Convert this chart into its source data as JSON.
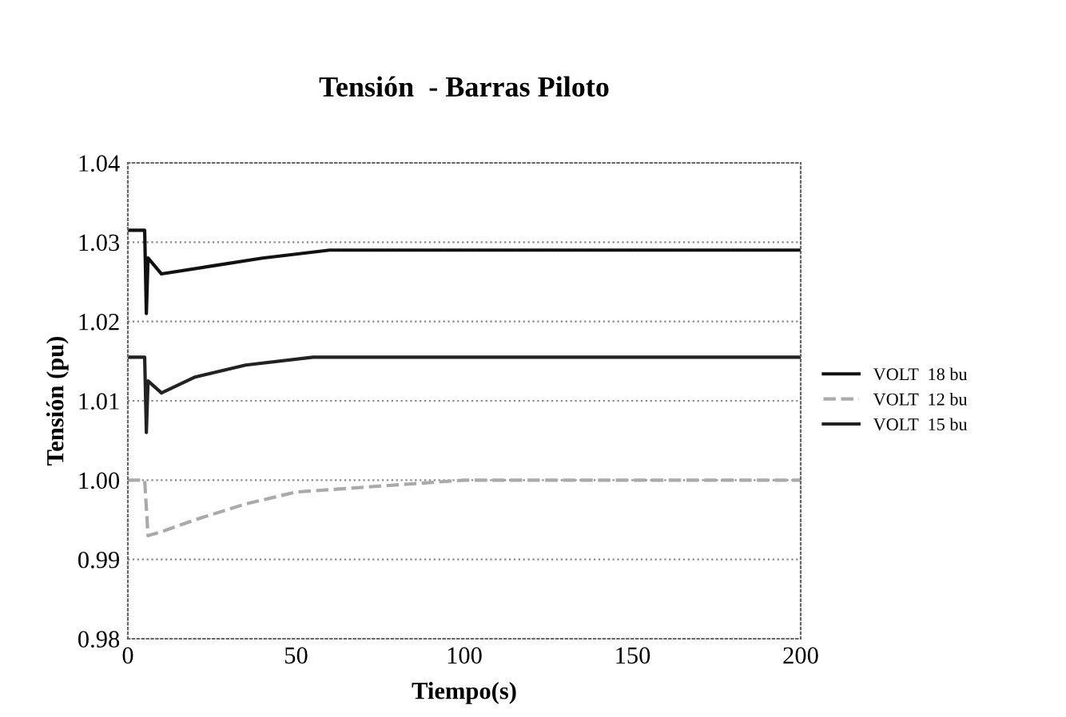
{
  "chart_data": {
    "type": "line",
    "title": "Tensión  - Barras Piloto",
    "xlabel": "Tiempo(s)",
    "ylabel": "Tensión (pu)",
    "xlim": [
      0,
      200
    ],
    "xticks": [
      0,
      50,
      100,
      150,
      200
    ],
    "ylim": [
      0.98,
      1.04
    ],
    "yticks": [
      {
        "value": 0.98,
        "label": "0.98"
      },
      {
        "value": 0.99,
        "label": "0.99"
      },
      {
        "value": 1.0,
        "label": "1.00"
      },
      {
        "value": 1.01,
        "label": "1.01"
      },
      {
        "value": 1.02,
        "label": "1.02"
      },
      {
        "value": 1.03,
        "label": "1.03"
      },
      {
        "value": 1.04,
        "label": "1.04"
      }
    ],
    "grid": "y",
    "legend": "right",
    "series": [
      {
        "name": "VOLT  18 bu",
        "color": "#111111",
        "line_style": "solid",
        "x": [
          0,
          5,
          5.5,
          6,
          10,
          25,
          40,
          60,
          200
        ],
        "values": [
          1.0315,
          1.0315,
          1.021,
          1.028,
          1.026,
          1.027,
          1.028,
          1.029,
          1.029
        ]
      },
      {
        "name": "VOLT  12 bu",
        "color": "#aaaaaa",
        "line_style": "dashed",
        "x": [
          0,
          5,
          6,
          10,
          20,
          35,
          50,
          100,
          200
        ],
        "values": [
          1.0,
          1.0,
          0.993,
          0.9935,
          0.995,
          0.997,
          0.9985,
          1.0,
          1.0
        ]
      },
      {
        "name": "VOLT  15 bu",
        "color": "#222222",
        "line_style": "solid",
        "x": [
          0,
          5,
          5.5,
          6,
          10,
          20,
          35,
          55,
          200
        ],
        "values": [
          1.0155,
          1.0155,
          1.006,
          1.0125,
          1.011,
          1.013,
          1.0145,
          1.0155,
          1.0155
        ]
      }
    ]
  }
}
